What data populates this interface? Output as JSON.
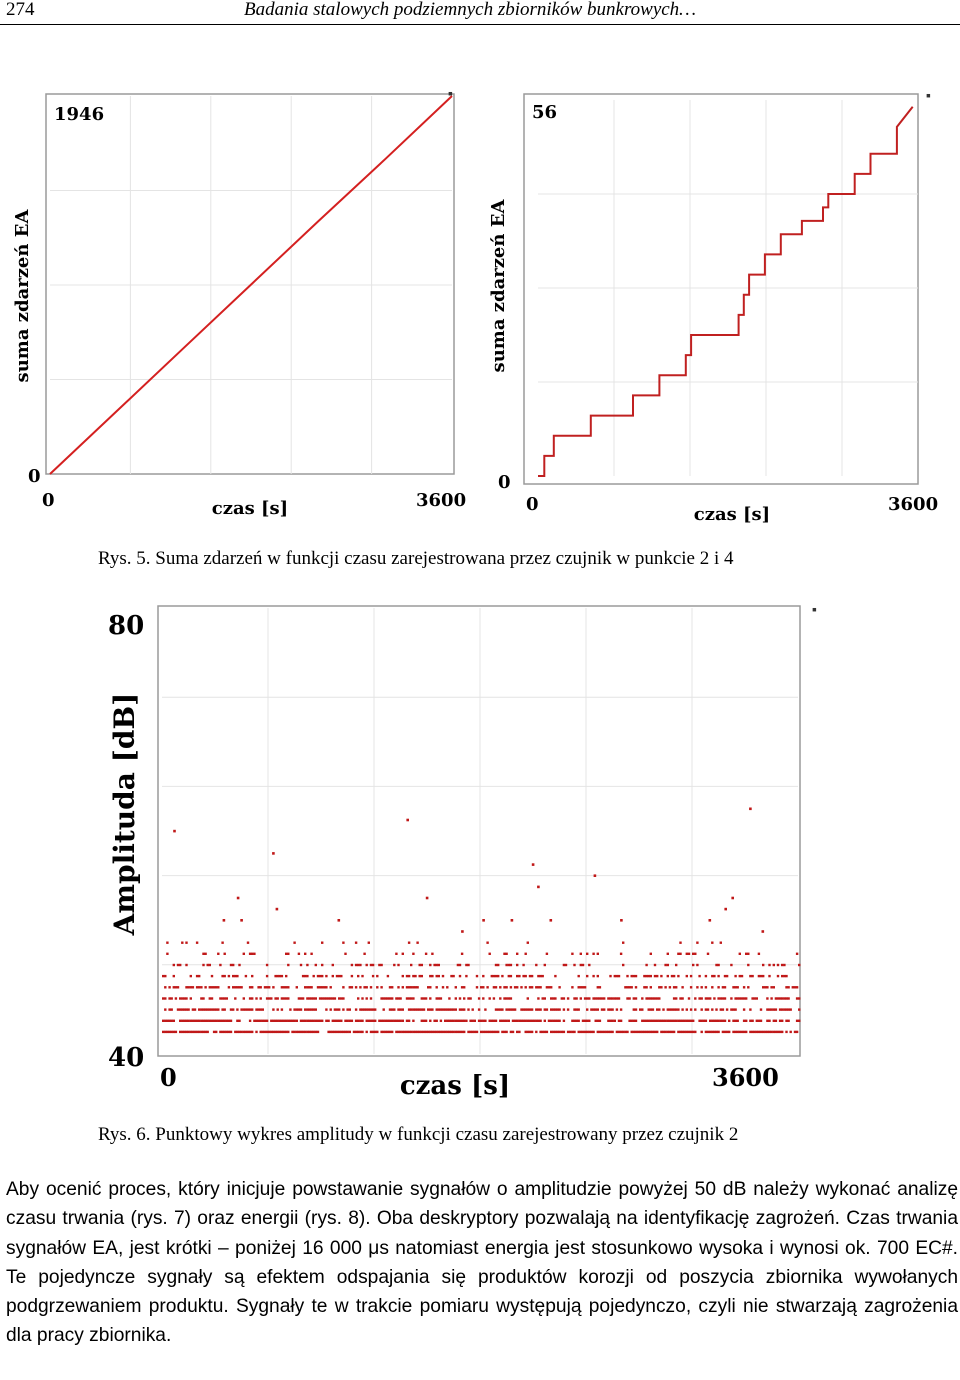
{
  "header": {
    "page_number": "274",
    "running_title": "Badania stalowych podziemnych zbiorników bunkrowych…"
  },
  "figure5": {
    "caption": "Rys. 5. Suma zdarzeń w funkcji czasu zarejestrowana przez czujnik w punkcie 2 i 4",
    "panels": [
      {
        "total_label": "1946",
        "ylabel": "suma zdarzeń EA",
        "xlabel": "czas [s]",
        "y_min_label": "0",
        "x_min_label": "0",
        "x_max_label": "3600"
      },
      {
        "total_label": "56",
        "ylabel": "suma zdarzeń EA",
        "xlabel": "czas [s]",
        "y_min_label": "0",
        "x_min_label": "0",
        "x_max_label": "3600"
      }
    ]
  },
  "figure6": {
    "caption": "Rys. 6. Punktowy wykres amplitudy w funkcji czasu zarejestrowany przez czujnik 2",
    "ylabel": "Amplituda [dB]",
    "xlabel": "czas [s]",
    "y_max_label": "80",
    "y_min_label": "40",
    "x_min_label": "0",
    "x_max_label": "3600"
  },
  "chart_data": [
    {
      "type": "line",
      "title": "1946",
      "xlabel": "czas [s]",
      "ylabel": "suma zdarzeń EA",
      "xlim": [
        0,
        3600
      ],
      "ylim": [
        0,
        1946
      ],
      "color": "#d42020",
      "series": [
        {
          "x": [
            0,
            600,
            1200,
            1800,
            2400,
            3000,
            3600
          ],
          "values": [
            0,
            325,
            650,
            975,
            1300,
            1620,
            1946
          ]
        }
      ]
    },
    {
      "type": "line",
      "title": "56",
      "xlabel": "czas [s]",
      "ylabel": "suma zdarzeń EA",
      "xlim": [
        0,
        3600
      ],
      "ylim": [
        0,
        56
      ],
      "color": "#c02020",
      "series": [
        {
          "x": [
            0,
            60,
            60,
            150,
            150,
            500,
            500,
            900,
            900,
            1150,
            1150,
            1400,
            1400,
            1450,
            1450,
            1900,
            1900,
            1950,
            1950,
            2000,
            2000,
            2150,
            2150,
            2300,
            2300,
            2500,
            2500,
            2700,
            2700,
            2750,
            2750,
            3000,
            3000,
            3150,
            3150,
            3400,
            3400,
            3550
          ],
          "values": [
            0,
            0,
            3,
            3,
            6,
            6,
            9,
            9,
            12,
            12,
            15,
            15,
            18,
            18,
            21,
            21,
            24,
            24,
            27,
            27,
            30,
            30,
            33,
            33,
            36,
            36,
            38,
            38,
            40,
            40,
            42,
            42,
            45,
            45,
            48,
            48,
            52,
            55
          ]
        }
      ]
    },
    {
      "type": "scatter",
      "xlabel": "czas [s]",
      "ylabel": "Amplituda [dB]",
      "xlim": [
        0,
        3600
      ],
      "ylim": [
        40,
        80
      ],
      "color": "#c01818",
      "bands": [
        42,
        43,
        44,
        45,
        46,
        47,
        48,
        49,
        50
      ],
      "outliers": [
        {
          "x": 70,
          "y": 60
        },
        {
          "x": 630,
          "y": 58
        },
        {
          "x": 1390,
          "y": 61
        },
        {
          "x": 2100,
          "y": 57
        },
        {
          "x": 2130,
          "y": 55
        },
        {
          "x": 2450,
          "y": 56
        },
        {
          "x": 3330,
          "y": 62
        },
        {
          "x": 3190,
          "y": 53
        },
        {
          "x": 3230,
          "y": 54
        },
        {
          "x": 1500,
          "y": 54
        },
        {
          "x": 650,
          "y": 53
        },
        {
          "x": 430,
          "y": 54
        },
        {
          "x": 350,
          "y": 52
        },
        {
          "x": 450,
          "y": 52
        },
        {
          "x": 1000,
          "y": 52
        },
        {
          "x": 1820,
          "y": 52
        },
        {
          "x": 1980,
          "y": 52
        },
        {
          "x": 2200,
          "y": 52
        },
        {
          "x": 2600,
          "y": 52
        },
        {
          "x": 3100,
          "y": 52
        },
        {
          "x": 3400,
          "y": 51
        },
        {
          "x": 1700,
          "y": 51
        }
      ]
    }
  ],
  "body": {
    "paragraph": "Aby ocenić proces, który inicjuje powstawanie sygnałów o amplitudzie powyżej 50 dB należy wykonać analizę czasu trwania (rys. 7) oraz energii (rys. 8). Oba deskryptory pozwalają na identyfikację zagrożeń. Czas trwania sygnałów EA, jest krótki – poniżej 16 000 μs natomiast energia jest stosunkowo wysoka i wynosi ok. 700 EC#. Te pojedyncze sygnały są efektem odspajania się produktów korozji od poszycia zbiornika wywołanych podgrzewaniem produktu. Sygnały te w trakcie pomiaru występują pojedynczo, czyli nie stwarzają zagrożenia dla pracy zbiornika."
  }
}
